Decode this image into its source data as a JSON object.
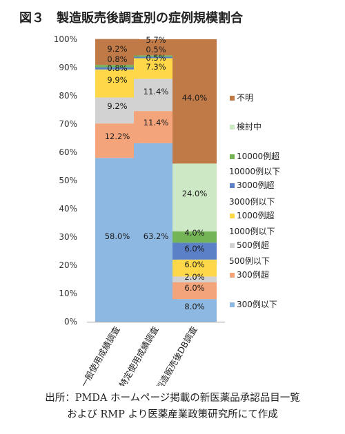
{
  "title": "図３　製造販売後調査別の症例規模割合",
  "source": {
    "line1": "出所：PMDA ホームページ掲載の新医薬品承認品目一覧",
    "line2": "および RMP より医薬産業政策研究所にて作成"
  },
  "chart_data": {
    "type": "bar",
    "stacked": true,
    "categories": [
      "一般使用成績調査",
      "特定使用成績調査",
      "製造販売後DB調査"
    ],
    "ylim": [
      0,
      100
    ],
    "y_ticks": [
      "0%",
      "10%",
      "20%",
      "30%",
      "40%",
      "50%",
      "60%",
      "70%",
      "80%",
      "90%",
      "100%"
    ],
    "grid": false,
    "legend_position": "right",
    "series": [
      {
        "name": "300例以下",
        "color": "#8db8e2",
        "values": [
          58.0,
          63.2,
          8.0
        ],
        "labels": [
          "58.0%",
          "63.2%",
          "8.0%"
        ]
      },
      {
        "name": "300例超 500例以下",
        "color": "#f4a47a",
        "values": [
          12.2,
          11.4,
          6.0
        ],
        "labels": [
          "12.2%",
          "11.4%",
          "6.0%"
        ]
      },
      {
        "name": "500例超 1000例以下",
        "color": "#d2d2d2",
        "values": [
          9.2,
          11.4,
          2.0
        ],
        "labels": [
          "9.2%",
          "11.4%",
          "2.0%"
        ]
      },
      {
        "name": "1000例超 3000例以下",
        "color": "#ffd84a",
        "values": [
          9.9,
          7.3,
          6.0
        ],
        "labels": [
          "9.9%",
          "7.3%",
          "6.0%"
        ]
      },
      {
        "name": "3000例超 10000例以下",
        "color": "#5b80c8",
        "values": [
          0.8,
          0.5,
          6.0
        ],
        "labels": [
          "0.8%",
          "0.5%",
          "6.0%"
        ]
      },
      {
        "name": "10000例超",
        "color": "#74b356",
        "values": [
          0.8,
          0.5,
          4.0
        ],
        "labels": [
          "0.8%",
          "0.5%",
          "4.0%"
        ]
      },
      {
        "name": "検討中",
        "color": "#cde8c4",
        "values": [
          0,
          0,
          24.0
        ],
        "labels": [
          "",
          "",
          "24.0%"
        ]
      },
      {
        "name": "不明",
        "color": "#c07a48",
        "values": [
          9.2,
          5.7,
          44.0
        ],
        "labels": [
          "9.2%",
          "5.7%",
          "44.0%"
        ]
      }
    ],
    "legend": [
      {
        "lines": [
          "不明"
        ],
        "color": "#c07a48"
      },
      {
        "lines": [
          "検討中"
        ],
        "color": "#cde8c4"
      },
      {
        "lines": [
          "10000例超"
        ],
        "color": "#74b356"
      },
      {
        "lines": [
          "3000例超",
          "10000例以下"
        ],
        "color": "#5b80c8"
      },
      {
        "lines": [
          "1000例超",
          "3000例以下"
        ],
        "color": "#ffd84a"
      },
      {
        "lines": [
          "500例超",
          "1000例以下"
        ],
        "color": "#d2d2d2"
      },
      {
        "lines": [
          "300例超",
          "500例以下"
        ],
        "color": "#f4a47a"
      },
      {
        "lines": [
          "300例以下"
        ],
        "color": "#8db8e2"
      }
    ]
  }
}
